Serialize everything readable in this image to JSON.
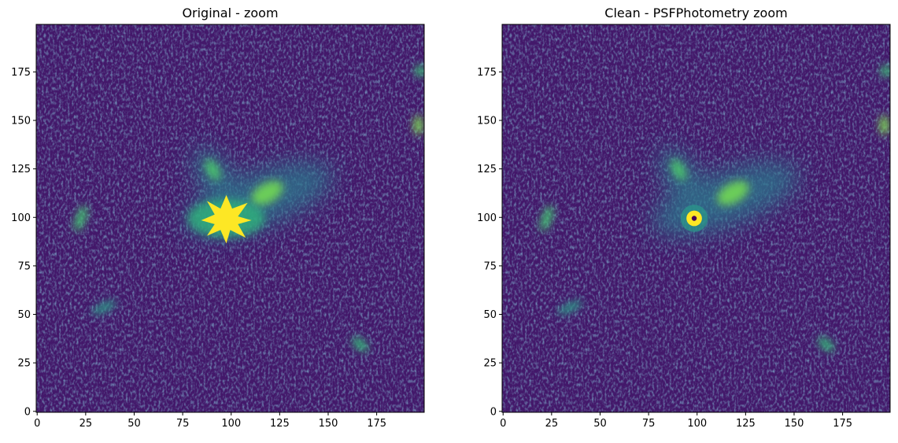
{
  "chart_data": [
    {
      "type": "image",
      "title": "Original - zoom",
      "xlim": [
        -0.5,
        199.5
      ],
      "ylim": [
        -0.5,
        199.5
      ],
      "xticks": [
        0,
        25,
        50,
        75,
        100,
        125,
        150,
        175
      ],
      "yticks": [
        0,
        25,
        50,
        75,
        100,
        125,
        150,
        175
      ]
    },
    {
      "type": "image",
      "title": "Clean - PSFPhotometry zoom",
      "xlim": [
        -0.5,
        199.5
      ],
      "ylim": [
        -0.5,
        199.5
      ],
      "xticks": [
        0,
        25,
        50,
        75,
        100,
        125,
        150,
        175
      ],
      "yticks": [
        0,
        25,
        50,
        75,
        100,
        125,
        150,
        175
      ]
    }
  ]
}
